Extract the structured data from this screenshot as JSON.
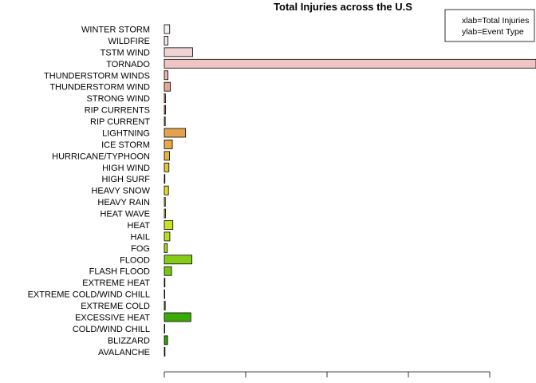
{
  "chart_data": {
    "type": "bar",
    "orientation": "horizontal",
    "title": "Total Injuries across the U.S",
    "legend": {
      "placement": "top-right",
      "lines": [
        "xlab=Total Injuries",
        "ylab=Event Type"
      ]
    },
    "categories": [
      "WINTER STORM",
      "WILDFIRE",
      "TSTM WIND",
      "TORNADO",
      "THUNDERSTORM WINDS",
      "THUNDERSTORM WIND",
      "STRONG WIND",
      "RIP CURRENTS",
      "RIP CURRENT",
      "LIGHTNING",
      "ICE STORM",
      "HURRICANE/TYPHOON",
      "HIGH WIND",
      "HIGH SURF",
      "HEAVY SNOW",
      "HEAVY RAIN",
      "HEAT WAVE",
      "HEAT",
      "HAIL",
      "FOG",
      "FLOOD",
      "FLASH FLOOD",
      "EXTREME HEAT",
      "EXTREME COLD/WIND CHILL",
      "EXTREME COLD",
      "EXCESSIVE HEAT",
      "COLD/WIND CHILL",
      "BLIZZARD",
      "AVALANCHE"
    ],
    "values": [
      1321,
      911,
      6957,
      91346,
      908,
      1488,
      280,
      297,
      232,
      5230,
      1975,
      1275,
      1137,
      152,
      1021,
      251,
      309,
      2100,
      1361,
      734,
      6789,
      1777,
      155,
      24,
      231,
      6525,
      12,
      805,
      170
    ],
    "colors": [
      "#f2f2f2",
      "#efe3e3",
      "#f0d3d3",
      "#f1c4c4",
      "#e8b4a8",
      "#e4a592",
      "#e0997e",
      "#dd9070",
      "#d98d5f",
      "#e3a24f",
      "#e5aa46",
      "#e5b43f",
      "#e6c13a",
      "#e5cc35",
      "#e4d72f",
      "#e1e12b",
      "#d4e227",
      "#c9e224",
      "#bbde20",
      "#a8d71c",
      "#86cc16",
      "#78c612",
      "#68bd0e",
      "#58b50b",
      "#4aae09",
      "#3caa06",
      "#32a404",
      "#2e9e04",
      "#2a9a04"
    ],
    "xlim": [
      0,
      91346
    ],
    "x_tick_labels": [
      "",
      "",
      "",
      "",
      ""
    ],
    "grid": false
  }
}
